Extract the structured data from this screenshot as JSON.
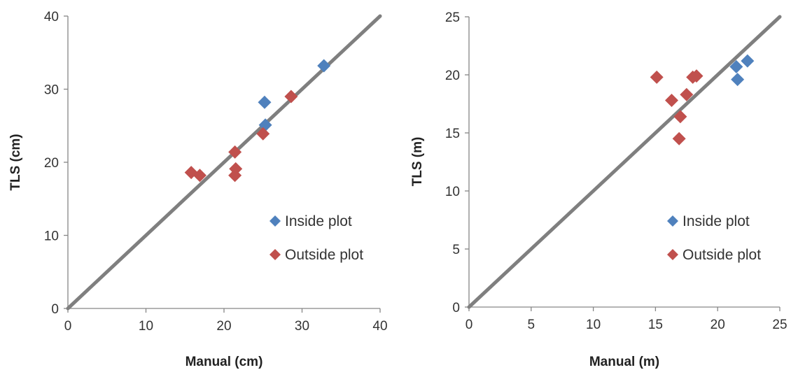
{
  "chart_data": [
    {
      "type": "scatter",
      "title": "",
      "xlabel": "Manual (cm)",
      "ylabel": "TLS (cm)",
      "xlim": [
        0,
        40
      ],
      "ylim": [
        0,
        40
      ],
      "x_ticks": [
        0,
        10,
        20,
        30,
        40
      ],
      "y_ticks": [
        0,
        10,
        20,
        30,
        40
      ],
      "grid": false,
      "legend_position": "right",
      "reference_line": {
        "from": [
          0,
          0
        ],
        "to": [
          40,
          40
        ],
        "color": "#7f7f7f"
      },
      "series": [
        {
          "name": "Inside plot",
          "color": "#4f81bd",
          "marker": "diamond",
          "points": [
            [
              25.2,
              28.2
            ],
            [
              25.3,
              25.1
            ],
            [
              32.8,
              33.2
            ]
          ]
        },
        {
          "name": "Outside plot",
          "color": "#c0504d",
          "marker": "diamond",
          "points": [
            [
              15.8,
              18.6
            ],
            [
              16.9,
              18.2
            ],
            [
              21.4,
              21.4
            ],
            [
              21.5,
              19.1
            ],
            [
              21.4,
              18.2
            ],
            [
              25.0,
              23.9
            ],
            [
              28.6,
              29.0
            ]
          ]
        }
      ]
    },
    {
      "type": "scatter",
      "title": "",
      "xlabel": "Manual (m)",
      "ylabel": "TLS (m)",
      "xlim": [
        0,
        25
      ],
      "ylim": [
        0,
        25
      ],
      "x_ticks": [
        0,
        5,
        10,
        15,
        20,
        25
      ],
      "y_ticks": [
        0,
        5,
        10,
        15,
        20,
        25
      ],
      "grid": false,
      "legend_position": "right",
      "reference_line": {
        "from": [
          0,
          0
        ],
        "to": [
          25,
          25
        ],
        "color": "#7f7f7f"
      },
      "series": [
        {
          "name": "Inside plot",
          "color": "#4f81bd",
          "marker": "diamond",
          "points": [
            [
              21.5,
              20.7
            ],
            [
              22.4,
              21.2
            ],
            [
              21.6,
              19.6
            ]
          ]
        },
        {
          "name": "Outside plot",
          "color": "#c0504d",
          "marker": "diamond",
          "points": [
            [
              15.1,
              19.8
            ],
            [
              16.3,
              17.8
            ],
            [
              17.0,
              16.4
            ],
            [
              16.9,
              14.5
            ],
            [
              17.5,
              18.3
            ],
            [
              18.0,
              19.8
            ],
            [
              18.3,
              19.9
            ]
          ]
        }
      ]
    }
  ]
}
